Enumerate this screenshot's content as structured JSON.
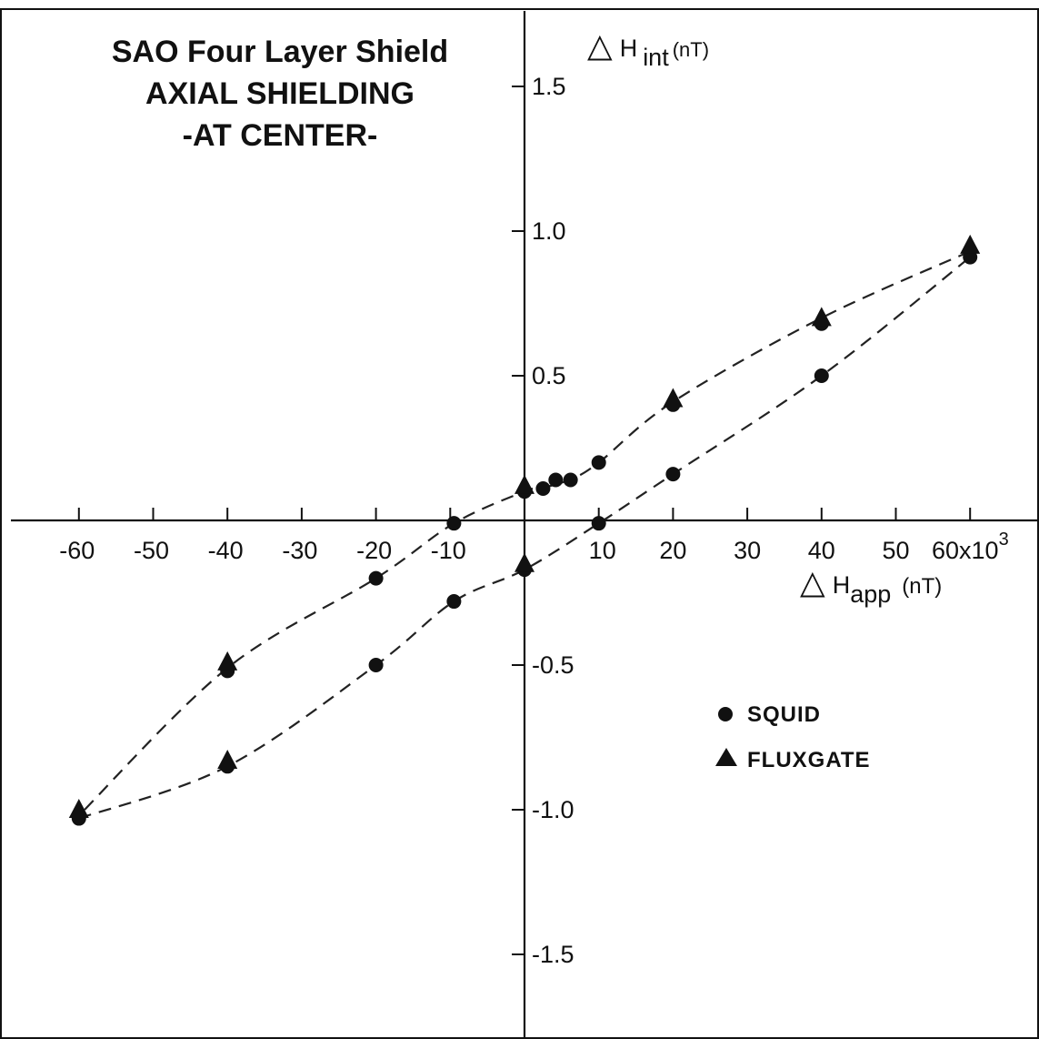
{
  "chart_data": {
    "type": "scatter",
    "title_lines": [
      "SAO Four Layer Shield",
      "AXIAL SHIELDING",
      "-AT CENTER-"
    ],
    "xlabel": {
      "symbol": "△",
      "base": "H",
      "subscript": "app",
      "unit": "(nT)"
    },
    "ylabel": {
      "symbol": "△",
      "base": "H",
      "subscript": "int",
      "unit": "(nT)"
    },
    "x_multiplier_label": "60x10",
    "x_multiplier_exponent": "3",
    "xlim": [
      -64,
      64
    ],
    "ylim": [
      -1.68,
      1.72
    ],
    "x_ticks": [
      -60,
      -50,
      -40,
      -30,
      -20,
      -10,
      10,
      20,
      30,
      40,
      50,
      60
    ],
    "x_tick_labels": [
      "-60",
      "-50",
      "-40",
      "-30",
      "-20",
      "-10",
      "10",
      "20",
      "30",
      "40",
      "50",
      "60x10"
    ],
    "y_ticks": [
      1.5,
      1.0,
      0.5,
      -0.5,
      -1.0,
      -1.5
    ],
    "y_tick_labels": [
      "1.5",
      "1.0",
      "0.5",
      "-0.5",
      "-1.0",
      "-1.5"
    ],
    "grid": false,
    "legend_position": "right-middle",
    "series": [
      {
        "name": "SQUID",
        "marker": "circle",
        "points": [
          [
            -60,
            -1.03
          ],
          [
            -40,
            -0.85
          ],
          [
            -20,
            -0.5
          ],
          [
            -9.5,
            -0.28
          ],
          [
            0,
            -0.17
          ],
          [
            10,
            -0.01
          ],
          [
            20,
            0.16
          ],
          [
            40,
            0.5
          ],
          [
            60,
            0.91
          ],
          [
            40,
            0.68
          ],
          [
            20,
            0.4
          ],
          [
            10,
            0.2
          ],
          [
            6.2,
            0.14
          ],
          [
            4.2,
            0.14
          ],
          [
            2.5,
            0.11
          ],
          [
            0,
            0.1
          ],
          [
            -9.5,
            -0.01
          ],
          [
            -20,
            -0.2
          ],
          [
            -40,
            -0.52
          ]
        ]
      },
      {
        "name": "FLUXGATE",
        "marker": "triangle",
        "points": [
          [
            -60,
            -1.0
          ],
          [
            -40,
            -0.83
          ],
          [
            0,
            -0.15
          ],
          [
            0,
            0.12
          ],
          [
            20,
            0.42
          ],
          [
            40,
            0.7
          ],
          [
            60,
            0.95
          ],
          [
            -40,
            -0.49
          ]
        ]
      }
    ],
    "curves": [
      {
        "name": "lower-branch",
        "points": [
          [
            -60,
            -1.03
          ],
          [
            -40,
            -0.85
          ],
          [
            -20,
            -0.5
          ],
          [
            -9.5,
            -0.28
          ],
          [
            0,
            -0.17
          ],
          [
            10,
            -0.01
          ],
          [
            20,
            0.16
          ],
          [
            40,
            0.5
          ],
          [
            60,
            0.91
          ]
        ]
      },
      {
        "name": "upper-branch",
        "points": [
          [
            60,
            0.93
          ],
          [
            40,
            0.7
          ],
          [
            20,
            0.41
          ],
          [
            10,
            0.2
          ],
          [
            6,
            0.14
          ],
          [
            2,
            0.11
          ],
          [
            0,
            0.1
          ],
          [
            -9.5,
            -0.01
          ],
          [
            -20,
            -0.2
          ],
          [
            -40,
            -0.51
          ],
          [
            -60,
            -1.02
          ]
        ]
      }
    ]
  }
}
